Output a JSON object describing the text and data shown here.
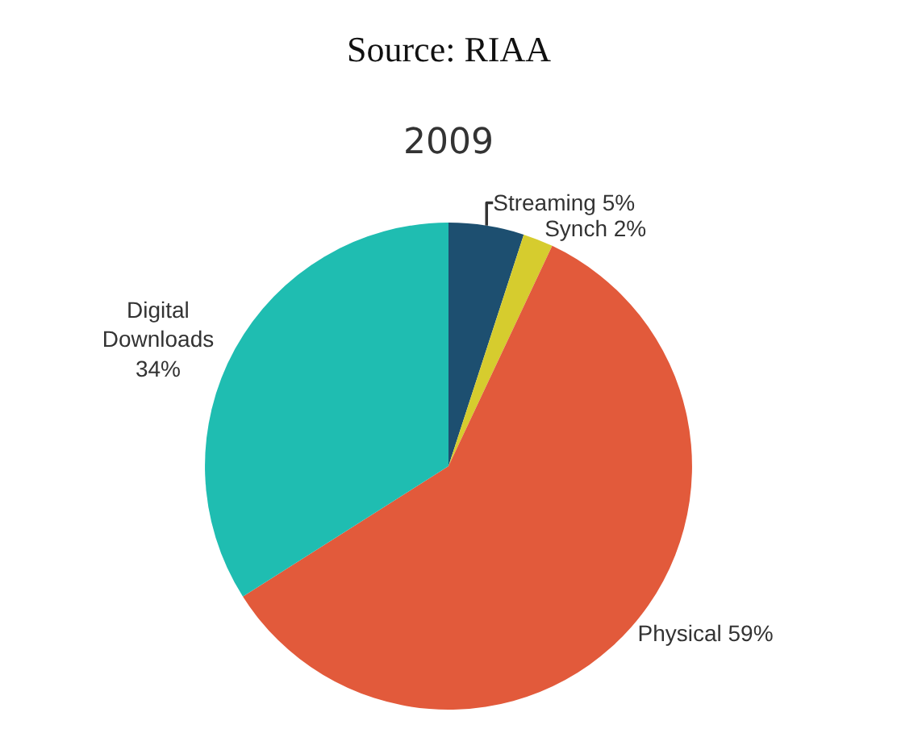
{
  "chart_data": {
    "type": "pie",
    "title": "2009",
    "annotations": [
      "Source: RIAA"
    ],
    "categories": [
      "Streaming",
      "Synch",
      "Physical",
      "Digital Downloads"
    ],
    "values": [
      5,
      2,
      59,
      34
    ],
    "value_labels": [
      "5%",
      "2%",
      "59%",
      "34%"
    ],
    "colors": [
      "#1d4f70",
      "#d6cc2e",
      "#e25a3b",
      "#1fbdb1"
    ]
  }
}
